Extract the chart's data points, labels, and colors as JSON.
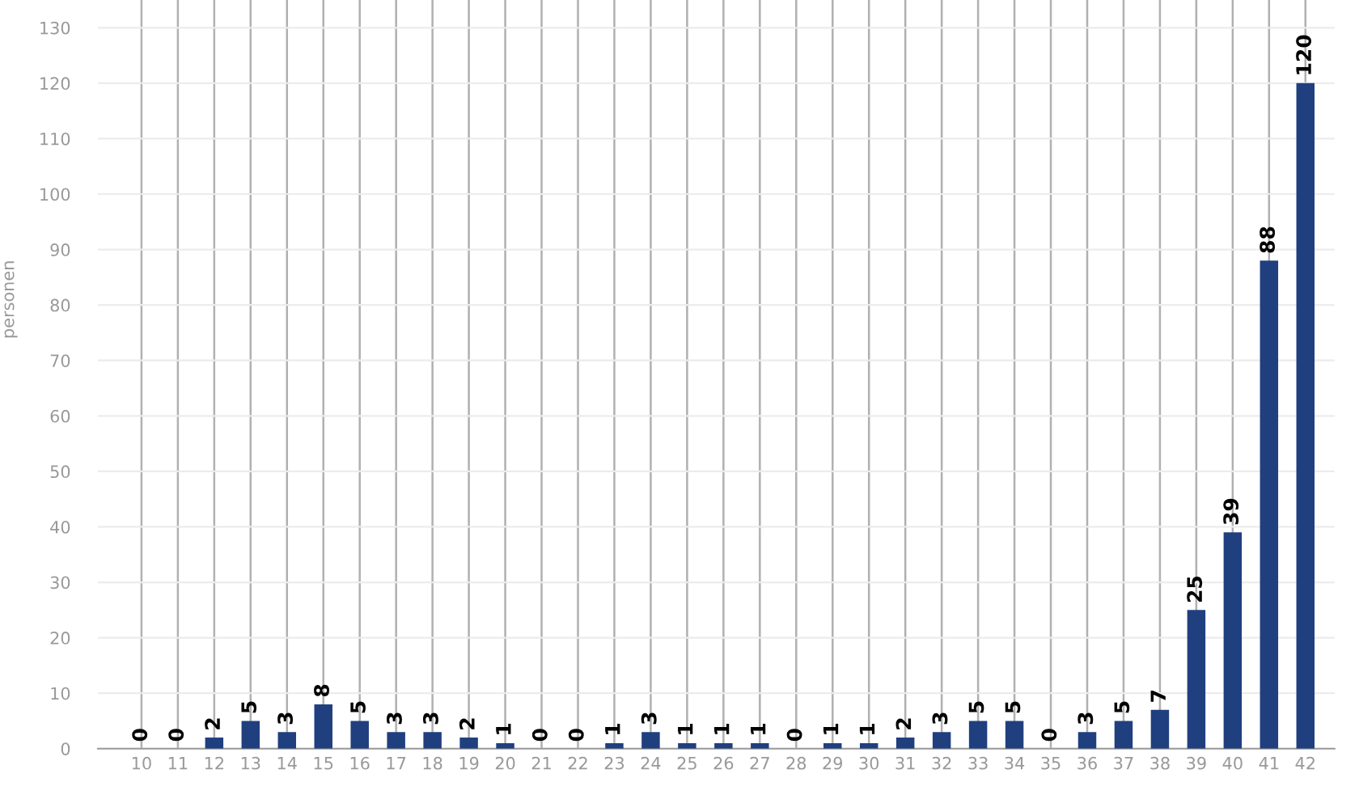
{
  "chart_data": {
    "type": "bar",
    "ylabel": "personen",
    "categories": [
      "10",
      "11",
      "12",
      "13",
      "14",
      "15",
      "16",
      "17",
      "18",
      "19",
      "20",
      "21",
      "22",
      "23",
      "24",
      "25",
      "26",
      "27",
      "28",
      "29",
      "30",
      "31",
      "32",
      "33",
      "34",
      "35",
      "36",
      "37",
      "38",
      "39",
      "40",
      "41",
      "42"
    ],
    "values": [
      0,
      0,
      2,
      5,
      3,
      8,
      5,
      3,
      3,
      2,
      1,
      0,
      0,
      1,
      3,
      1,
      1,
      1,
      0,
      1,
      1,
      2,
      3,
      5,
      5,
      0,
      3,
      5,
      7,
      25,
      39,
      88,
      120
    ],
    "color": "#203f7f",
    "ylim": [
      0,
      135
    ],
    "yticks": [
      0,
      10,
      20,
      30,
      40,
      50,
      60,
      70,
      80,
      90,
      100,
      110,
      120,
      130
    ],
    "grid": true,
    "data_labels": true
  }
}
